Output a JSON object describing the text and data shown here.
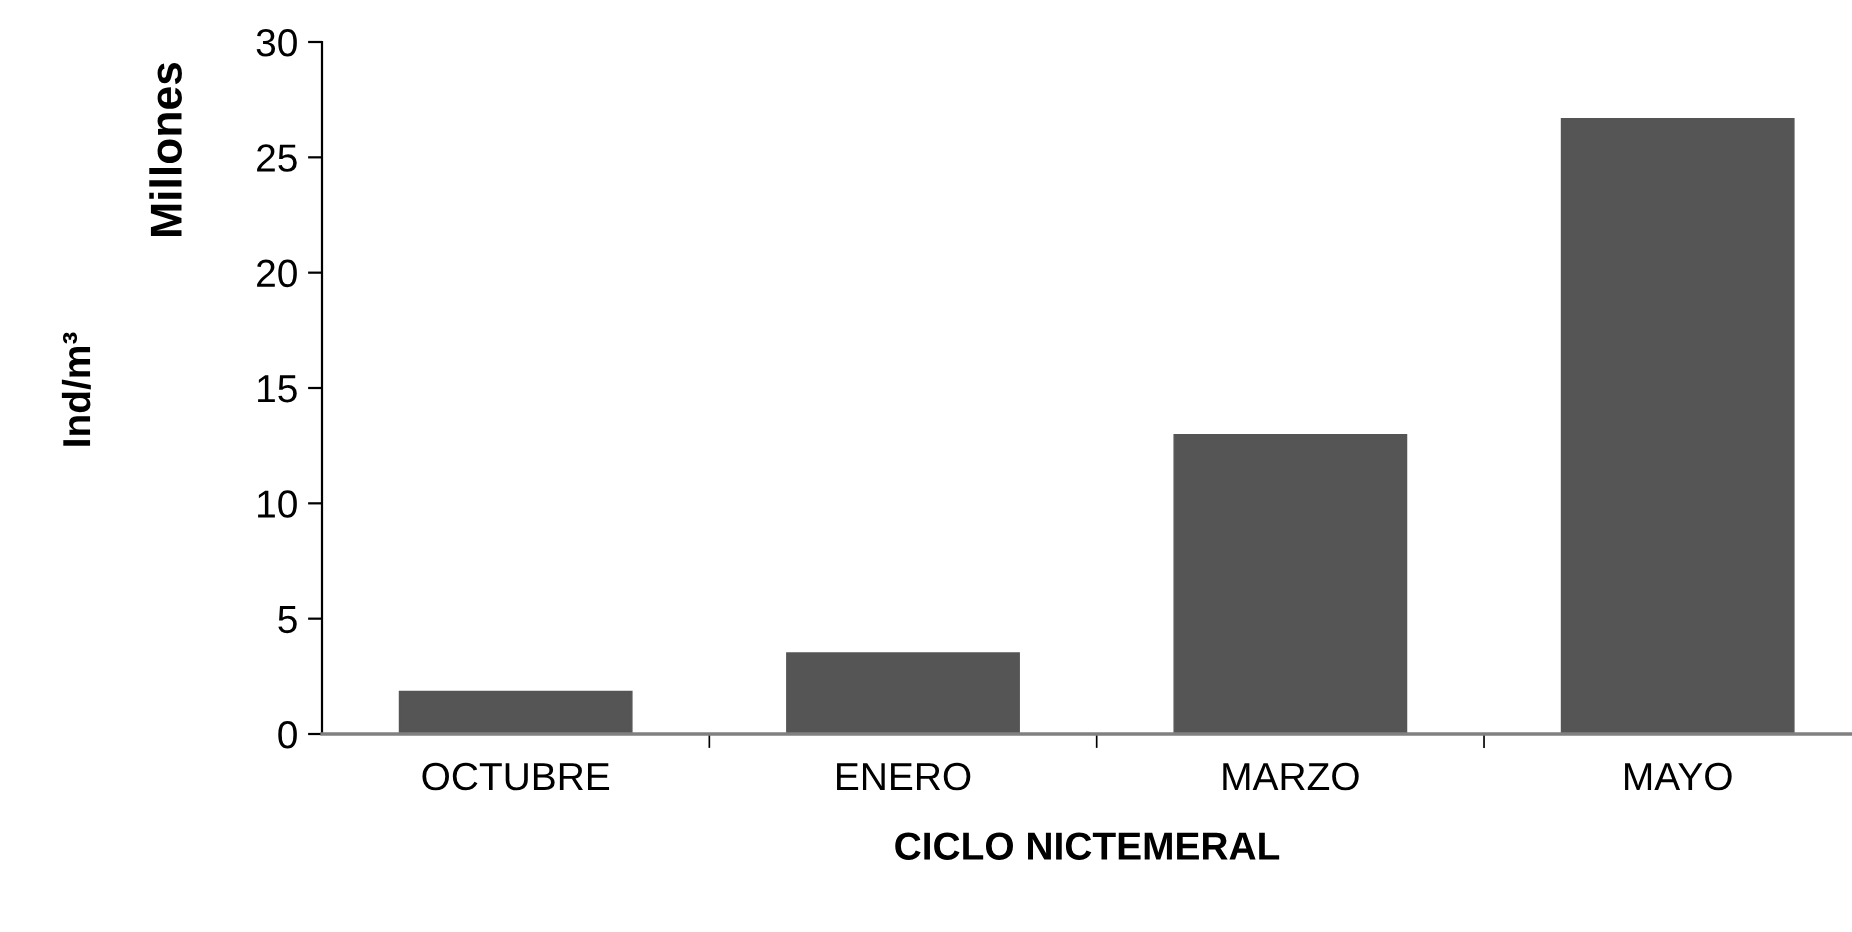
{
  "chart_data": {
    "type": "bar",
    "categories": [
      "OCTUBRE",
      "ENERO",
      "MARZO",
      "MAYO"
    ],
    "values": [
      1.84,
      3.51,
      12.98,
      26.67
    ],
    "color": "#555555",
    "xlabel": "CICLO NICTEMERAL",
    "ylabel": "Ind/m³",
    "annotations": [
      "Millones"
    ],
    "ylim": [
      0,
      30
    ],
    "yticks": [
      0,
      5,
      10,
      15,
      20,
      25,
      30
    ],
    "grid": false,
    "legend": false
  }
}
